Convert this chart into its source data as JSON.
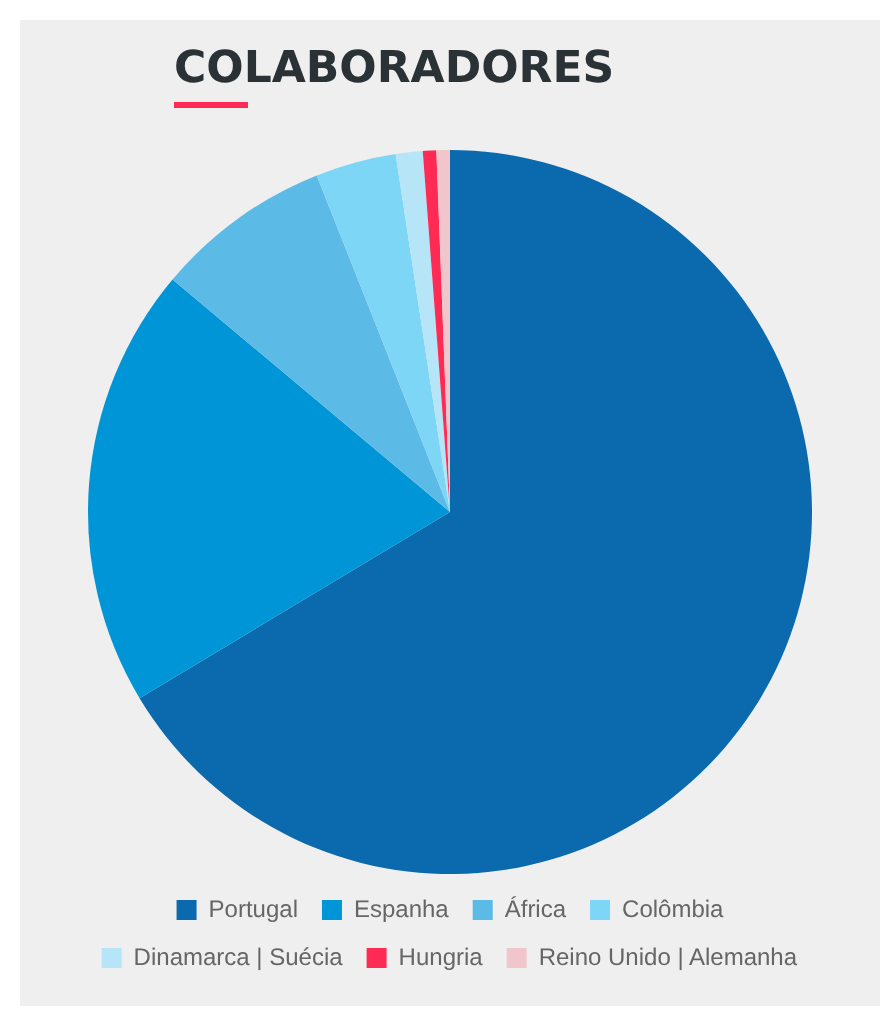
{
  "chart_data": {
    "type": "pie",
    "title": "COLABORADORES",
    "categories": [
      "Portugal",
      "Espanha",
      "África",
      "Colômbia",
      "Dinamarca | Suécia",
      "Hungria",
      "Reino Unido | Alemanha"
    ],
    "values": [
      66.4,
      19.7,
      7.9,
      3.6,
      1.2,
      0.6,
      0.6
    ],
    "colors": [
      "#0a6aad",
      "#0095d6",
      "#5bbbe6",
      "#7dd6f5",
      "#b5e5f7",
      "#ff2b55",
      "#f0c5cc"
    ],
    "legend": "bottom"
  }
}
